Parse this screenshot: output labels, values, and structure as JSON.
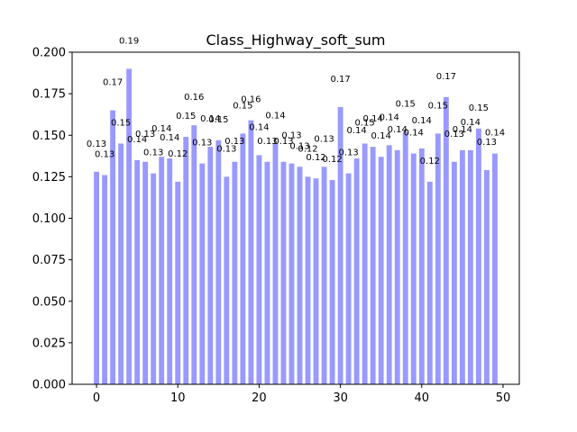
{
  "chart_data": {
    "type": "bar",
    "title": "Class_Highway_soft_sum",
    "xlabel": "",
    "ylabel": "",
    "xlim": [
      -3,
      52
    ],
    "ylim": [
      0,
      0.2
    ],
    "xticks": [
      0,
      10,
      20,
      30,
      40,
      50
    ],
    "yticks": [
      0.0,
      0.025,
      0.05,
      0.075,
      0.1,
      0.125,
      0.15,
      0.175,
      0.2
    ],
    "ytick_labels": [
      "0.000",
      "0.025",
      "0.050",
      "0.075",
      "0.100",
      "0.125",
      "0.150",
      "0.175",
      "0.200"
    ],
    "bar_color": "#9999ff",
    "grid": false,
    "x": [
      0,
      1,
      2,
      3,
      4,
      5,
      6,
      7,
      8,
      9,
      10,
      11,
      12,
      13,
      14,
      15,
      16,
      17,
      18,
      19,
      20,
      21,
      22,
      23,
      24,
      25,
      26,
      27,
      28,
      29,
      30,
      31,
      32,
      33,
      34,
      35,
      36,
      37,
      38,
      39,
      40,
      41,
      42,
      43,
      44,
      45,
      46,
      47,
      48,
      49
    ],
    "values": [
      0.128,
      0.126,
      0.165,
      0.145,
      0.19,
      0.135,
      0.134,
      0.127,
      0.137,
      0.136,
      0.122,
      0.149,
      0.156,
      0.133,
      0.143,
      0.147,
      0.125,
      0.134,
      0.151,
      0.159,
      0.138,
      0.134,
      0.145,
      0.134,
      0.133,
      0.131,
      0.125,
      0.124,
      0.131,
      0.123,
      0.167,
      0.127,
      0.136,
      0.145,
      0.143,
      0.137,
      0.144,
      0.141,
      0.152,
      0.139,
      0.142,
      0.122,
      0.151,
      0.173,
      0.134,
      0.141,
      0.141,
      0.154,
      0.129,
      0.139
    ],
    "data_labels": [
      "0.13",
      "0.13",
      "0.17",
      "0.15",
      "0.19",
      "0.14",
      "0.13",
      "0.13",
      "0.14",
      "0.14",
      "0.12",
      "0.15",
      "0.16",
      "0.13",
      "0.14",
      "0.15",
      "0.13",
      "0.13",
      "0.15",
      "0.16",
      "0.14",
      "0.13",
      "0.14",
      "0.13",
      "0.13",
      "0.13",
      "0.12",
      "0.12",
      "0.13",
      "0.12",
      "0.17",
      "0.13",
      "0.14",
      "0.15",
      "0.14",
      "0.14",
      "0.14",
      "0.14",
      "0.15",
      "0.14",
      "0.14",
      "0.12",
      "0.15",
      "0.17",
      "0.13",
      "0.14",
      "0.14",
      "0.15",
      "0.13",
      "0.14"
    ]
  }
}
